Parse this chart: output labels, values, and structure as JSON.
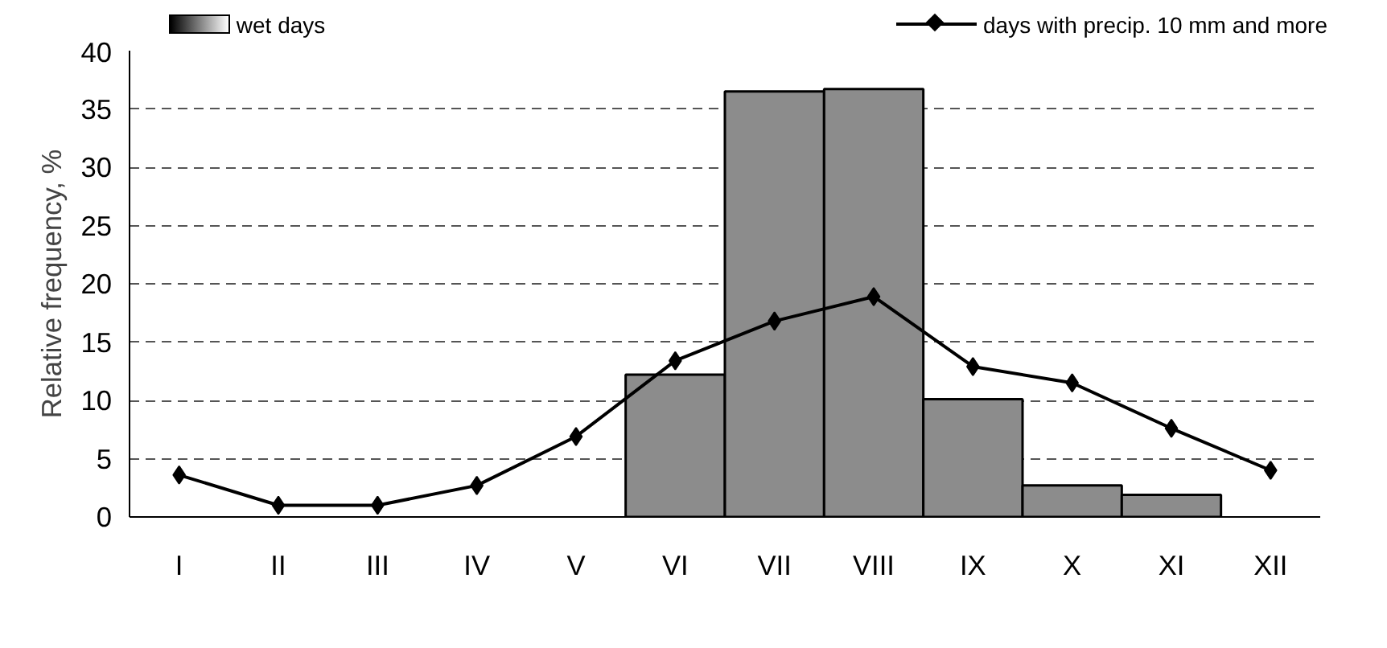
{
  "chart_data": {
    "type": "bar",
    "ylabel": "Relative frequency, %",
    "categories": [
      "I",
      "II",
      "III",
      "IV",
      "V",
      "VI",
      "VII",
      "VIII",
      "IX",
      "X",
      "XI",
      "XII"
    ],
    "series": [
      {
        "name": "wet days",
        "color": "#8c8c8c",
        "values": [
          null,
          null,
          null,
          null,
          null,
          12.2,
          36.5,
          36.7,
          10.1,
          2.7,
          1.9,
          null
        ]
      },
      {
        "name": "days with precip. 10 mm and more",
        "type": "line",
        "color": "#000000",
        "marker": "diamond",
        "values": [
          3.6,
          1.0,
          1.0,
          2.7,
          6.9,
          13.4,
          16.8,
          18.9,
          12.9,
          11.5,
          7.6,
          4.0
        ]
      }
    ],
    "ylim": [
      0,
      40
    ],
    "yticks": [
      0,
      5,
      10,
      15,
      20,
      25,
      30,
      35,
      40
    ],
    "grid": "y",
    "legend": "top"
  }
}
